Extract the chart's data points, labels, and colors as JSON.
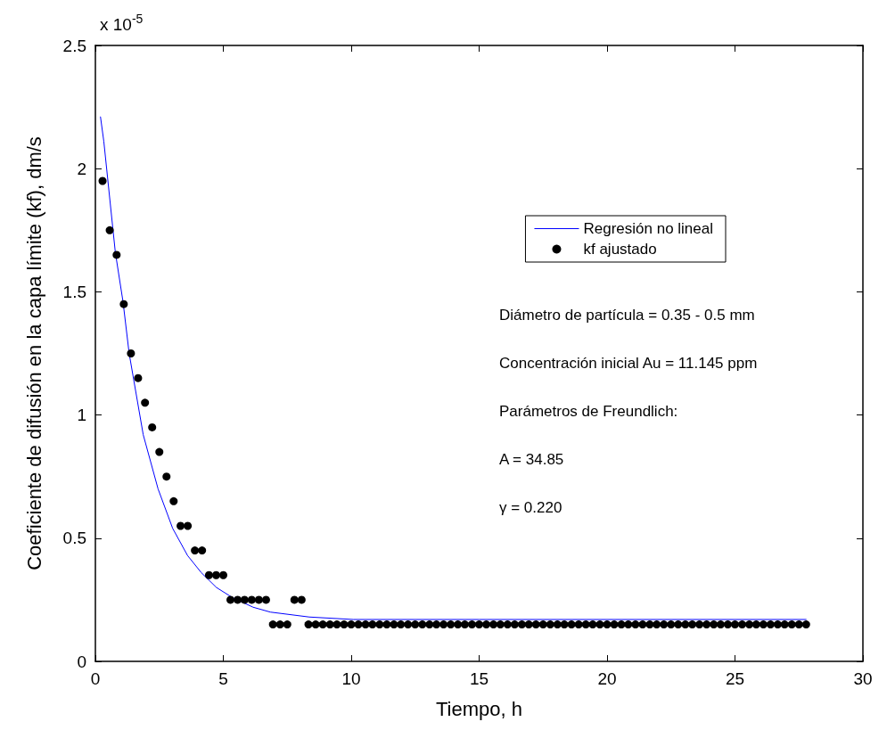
{
  "chart_data": {
    "type": "scatter",
    "xlabel": "Tiempo, h",
    "ylabel": "Coeficiente de difusión en la capa límite (kf), dm/s",
    "xlim": [
      0,
      30
    ],
    "xticks": [
      0,
      5,
      10,
      15,
      20,
      25,
      30
    ],
    "ylim": [
      0,
      2.5
    ],
    "yticks": [
      0,
      0.5,
      1,
      1.5,
      2,
      2.5
    ],
    "grid": false,
    "legend": "top right",
    "annotations": [
      "x 10$^{-5}$",
      "Diámetro de partícula = 0.35 - 0.5 mm",
      "Concentración inicial Au = 11.145 ppm",
      "Parámetros de Freundlich:",
      "A = 34.85",
      "γ = 0.220"
    ],
    "series": [
      {
        "name": "Regresión no lineal",
        "type": "line",
        "color": "#0000ff",
        "marker": "none",
        "line_style": "solid",
        "x": [
          0.2,
          0.33,
          0.78,
          1.08,
          1.32,
          1.87,
          2.45,
          3.02,
          3.6,
          4.14,
          4.73,
          5.34,
          6.16,
          6.84,
          8.36,
          10.08,
          15,
          20,
          27.78
        ],
        "values": [
          2.21,
          2.11,
          1.66,
          1.46,
          1.25,
          0.92,
          0.7,
          0.54,
          0.43,
          0.36,
          0.3,
          0.26,
          0.22,
          0.2,
          0.18,
          0.17,
          0.17,
          0.17,
          0.17
        ]
      },
      {
        "name": "kf ajustado",
        "color": "#000000",
        "marker": "circle",
        "x": [
          0.28,
          0.56,
          0.83,
          1.11,
          1.39,
          1.67,
          1.94,
          2.22,
          2.5,
          2.78,
          3.06,
          3.33,
          3.61,
          3.89,
          4.17,
          4.44,
          4.72,
          5,
          5.28,
          5.56,
          5.83,
          6.11,
          6.39,
          6.67,
          6.94,
          7.22,
          7.5,
          7.78,
          8.06,
          8.33,
          8.61,
          8.89,
          9.17,
          9.44,
          9.72,
          10,
          10.28,
          10.56,
          10.83,
          11.11,
          11.39,
          11.67,
          11.94,
          12.22,
          12.5,
          12.78,
          13.06,
          13.33,
          13.61,
          13.89,
          14.17,
          14.44,
          14.72,
          15,
          15.28,
          15.56,
          15.83,
          16.11,
          16.39,
          16.67,
          16.94,
          17.22,
          17.5,
          17.78,
          18.06,
          18.33,
          18.61,
          18.89,
          19.17,
          19.44,
          19.72,
          20,
          20.28,
          20.56,
          20.83,
          21.11,
          21.39,
          21.67,
          21.94,
          22.22,
          22.5,
          22.78,
          23.06,
          23.33,
          23.61,
          23.89,
          24.17,
          24.44,
          24.72,
          25,
          25.28,
          25.56,
          25.83,
          26.11,
          26.39,
          26.67,
          26.94,
          27.22,
          27.5,
          27.78
        ],
        "values": [
          1.95,
          1.75,
          1.65,
          1.45,
          1.25,
          1.15,
          1.05,
          0.95,
          0.85,
          0.75,
          0.65,
          0.55,
          0.55,
          0.45,
          0.45,
          0.35,
          0.35,
          0.35,
          0.25,
          0.25,
          0.25,
          0.25,
          0.25,
          0.25,
          0.15,
          0.15,
          0.15,
          0.25,
          0.25,
          0.15,
          0.15,
          0.15,
          0.15,
          0.15,
          0.15,
          0.15,
          0.15,
          0.15,
          0.15,
          0.15,
          0.15,
          0.15,
          0.15,
          0.15,
          0.15,
          0.15,
          0.15,
          0.15,
          0.15,
          0.15,
          0.15,
          0.15,
          0.15,
          0.15,
          0.15,
          0.15,
          0.15,
          0.15,
          0.15,
          0.15,
          0.15,
          0.15,
          0.15,
          0.15,
          0.15,
          0.15,
          0.15,
          0.15,
          0.15,
          0.15,
          0.15,
          0.15,
          0.15,
          0.15,
          0.15,
          0.15,
          0.15,
          0.15,
          0.15,
          0.15,
          0.15,
          0.15,
          0.15,
          0.15,
          0.15,
          0.15,
          0.15,
          0.15,
          0.15,
          0.15,
          0.15,
          0.15,
          0.15,
          0.15,
          0.15,
          0.15,
          0.15,
          0.15,
          0.15,
          0.15
        ]
      }
    ]
  }
}
